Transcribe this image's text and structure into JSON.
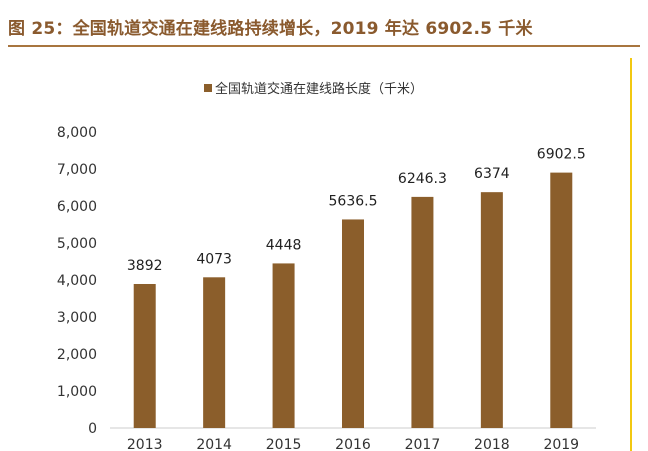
{
  "figure": {
    "title": "图 25：全国轨道交通在建线路持续增长，2019 年达 6902.5 千米"
  },
  "chart_data": {
    "type": "bar",
    "title": "",
    "xlabel": "",
    "ylabel": "",
    "categories": [
      "2013",
      "2014",
      "2015",
      "2016",
      "2017",
      "2018",
      "2019"
    ],
    "series": [
      {
        "name": "全国轨道交通在建线路长度（千米）",
        "values": [
          3892,
          4073,
          4448,
          5636.5,
          6246.3,
          6374,
          6902.5
        ],
        "labels": [
          "3892",
          "4073",
          "4448",
          "5636.5",
          "6246.3",
          "6374",
          "6902.5"
        ]
      }
    ],
    "ylim": [
      0,
      8000
    ],
    "yticks": [
      0,
      1000,
      2000,
      3000,
      4000,
      5000,
      6000,
      7000,
      8000
    ],
    "ytick_labels": [
      "0",
      "1,000",
      "2,000",
      "3,000",
      "4,000",
      "5,000",
      "6,000",
      "7,000",
      "8,000"
    ],
    "grid": false,
    "legend_position": "top-center",
    "colors": {
      "bar": "#8b5e2b",
      "axis": "#cccccc",
      "text": "#333333"
    }
  }
}
